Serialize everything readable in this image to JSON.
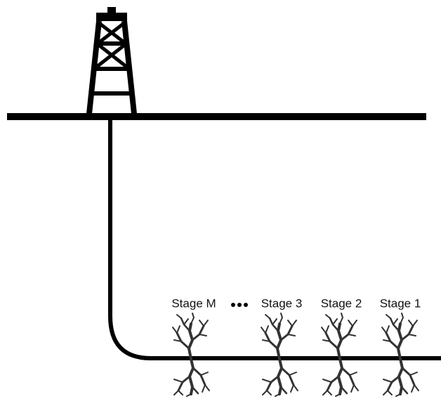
{
  "stages": [
    "Stage M",
    "Stage 3",
    "Stage 2",
    "Stage 1"
  ]
}
